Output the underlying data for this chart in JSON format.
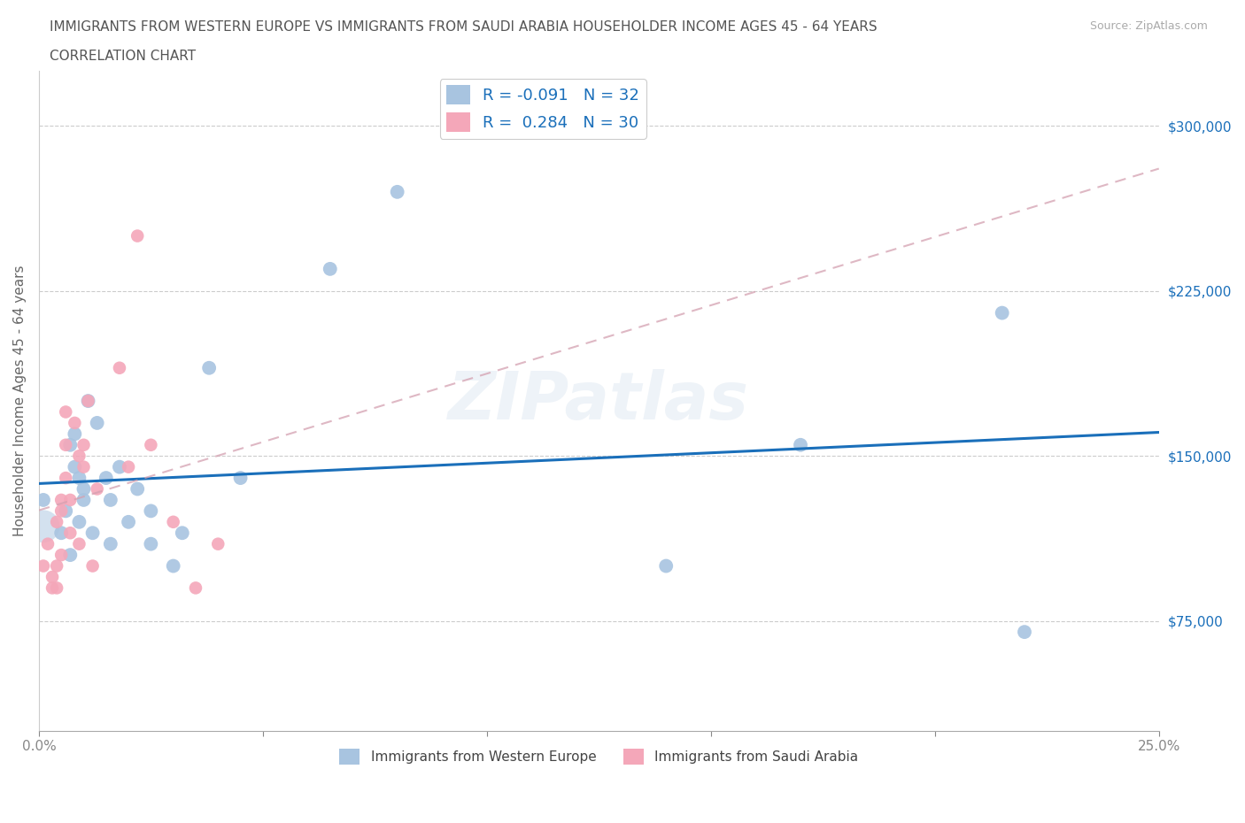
{
  "title_line1": "IMMIGRANTS FROM WESTERN EUROPE VS IMMIGRANTS FROM SAUDI ARABIA HOUSEHOLDER INCOME AGES 45 - 64 YEARS",
  "title_line2": "CORRELATION CHART",
  "source_text": "Source: ZipAtlas.com",
  "ylabel": "Householder Income Ages 45 - 64 years",
  "xlim": [
    0.0,
    0.25
  ],
  "ylim": [
    25000,
    325000
  ],
  "ytick_vals_right": [
    75000,
    150000,
    225000,
    300000
  ],
  "r_western": -0.091,
  "n_western": 32,
  "r_saudi": 0.284,
  "n_saudi": 30,
  "color_western": "#a8c4e0",
  "color_saudi": "#f4a7b9",
  "trendline_western_color": "#1a6fba",
  "trendline_saudi_color": "#d4a0b0",
  "watermark": "ZIPatlas",
  "background_color": "#ffffff",
  "western_x": [
    0.001,
    0.005,
    0.006,
    0.007,
    0.007,
    0.008,
    0.008,
    0.009,
    0.009,
    0.01,
    0.01,
    0.011,
    0.012,
    0.013,
    0.015,
    0.016,
    0.016,
    0.018,
    0.02,
    0.022,
    0.025,
    0.025,
    0.03,
    0.032,
    0.038,
    0.045,
    0.065,
    0.08,
    0.14,
    0.17,
    0.215,
    0.22
  ],
  "western_y": [
    130000,
    115000,
    125000,
    105000,
    155000,
    145000,
    160000,
    120000,
    140000,
    130000,
    135000,
    175000,
    115000,
    165000,
    140000,
    110000,
    130000,
    145000,
    120000,
    135000,
    125000,
    110000,
    100000,
    115000,
    190000,
    140000,
    235000,
    270000,
    100000,
    155000,
    215000,
    70000
  ],
  "saudi_x": [
    0.001,
    0.002,
    0.003,
    0.003,
    0.004,
    0.004,
    0.004,
    0.005,
    0.005,
    0.005,
    0.006,
    0.006,
    0.006,
    0.007,
    0.007,
    0.008,
    0.009,
    0.009,
    0.01,
    0.01,
    0.011,
    0.012,
    0.013,
    0.018,
    0.02,
    0.022,
    0.025,
    0.03,
    0.035,
    0.04
  ],
  "saudi_y": [
    100000,
    110000,
    90000,
    95000,
    120000,
    100000,
    90000,
    130000,
    125000,
    105000,
    155000,
    170000,
    140000,
    115000,
    130000,
    165000,
    110000,
    150000,
    155000,
    145000,
    175000,
    100000,
    135000,
    190000,
    145000,
    250000,
    155000,
    120000,
    90000,
    110000
  ]
}
